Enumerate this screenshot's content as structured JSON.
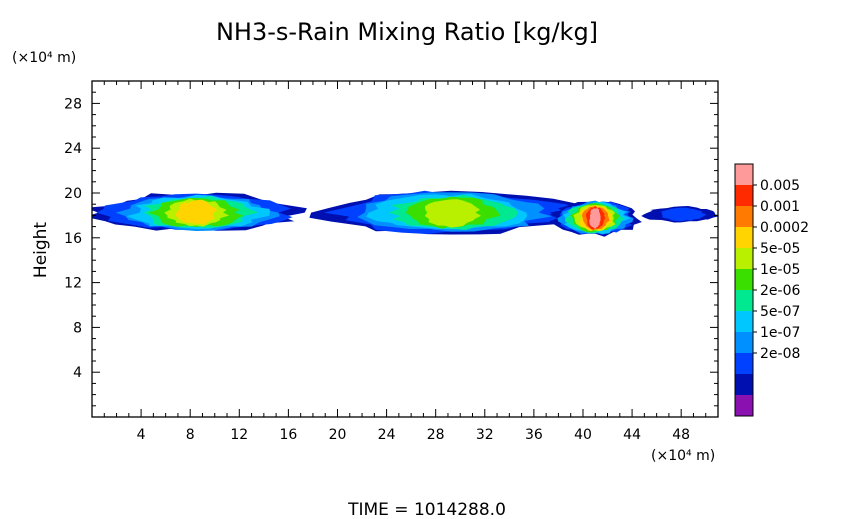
{
  "chart_data": {
    "type": "heatmap",
    "title": "NH3-s-Rain Mixing Ratio [kg/kg]",
    "ylabel": "Height",
    "y_unit_label": "(×10⁴ m)",
    "x_unit_label": "(×10⁴ m)",
    "xlim": [
      0,
      51
    ],
    "ylim": [
      0,
      30
    ],
    "x_ticks": [
      4,
      8,
      12,
      16,
      20,
      24,
      28,
      32,
      36,
      40,
      44,
      48
    ],
    "y_ticks": [
      4,
      8,
      12,
      16,
      20,
      24,
      28
    ],
    "colorbar": {
      "scale": "log",
      "labels": [
        "0.005",
        "0.001",
        "0.0002",
        "5e-05",
        "1e-05",
        "2e-06",
        "5e-07",
        "1e-07",
        "2e-08"
      ],
      "colors": [
        "#ff9a9a",
        "#ff2a00",
        "#ff7a00",
        "#ffd400",
        "#b8f000",
        "#3adf00",
        "#00e890",
        "#00c8ff",
        "#0090ff",
        "#0040ff",
        "#0010b0",
        "#8a10b0"
      ]
    },
    "regions": [
      {
        "x_range": [
          0,
          17
        ],
        "y_range": [
          16.5,
          20.0
        ],
        "peak_level": 3
      },
      {
        "x_range": [
          18.5,
          40
        ],
        "y_range": [
          16.3,
          20.2
        ],
        "peak_level": 4
      },
      {
        "x_range": [
          37.5,
          44.5
        ],
        "y_range": [
          16.2,
          19.3
        ],
        "peak_level": 0
      },
      {
        "x_range": [
          45,
          51
        ],
        "y_range": [
          17.4,
          18.8
        ],
        "peak_level": 9
      }
    ],
    "footer": "TIME = 1014288.0"
  }
}
